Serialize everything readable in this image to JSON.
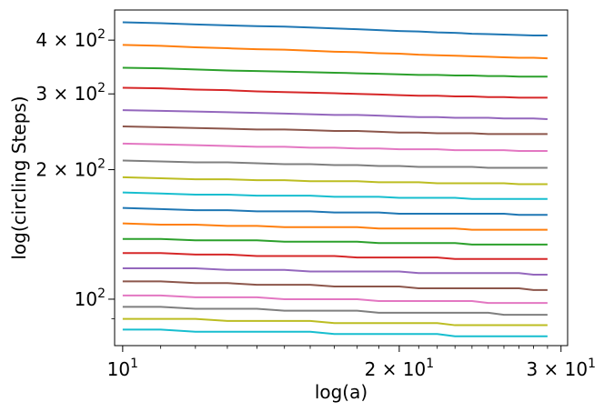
{
  "chart_data": {
    "type": "line",
    "title": "",
    "xlabel": "log(a)",
    "ylabel": "log(circling Steps)",
    "x_scale": "log",
    "y_scale": "log",
    "xlim": [
      9.8,
      30.5
    ],
    "ylim": [
      78,
      470
    ],
    "grid": false,
    "legend": "none",
    "x_ticks": [
      {
        "value": 10,
        "base": "10",
        "exp": "1",
        "coef": ""
      },
      {
        "value": 20,
        "base": "10",
        "exp": "1",
        "coef": "2"
      },
      {
        "value": 30,
        "base": "10",
        "exp": "1",
        "coef": "3"
      }
    ],
    "y_ticks": [
      {
        "value": 100,
        "base": "10",
        "exp": "2",
        "coef": ""
      },
      {
        "value": 200,
        "base": "10",
        "exp": "2",
        "coef": "2"
      },
      {
        "value": 300,
        "base": "10",
        "exp": "2",
        "coef": "3"
      },
      {
        "value": 400,
        "base": "10",
        "exp": "2",
        "coef": "4"
      }
    ],
    "x": [
      10,
      11,
      12,
      13,
      14,
      15,
      16,
      17,
      18,
      19,
      20,
      21,
      22,
      23,
      24,
      25,
      26,
      27,
      28,
      29
    ],
    "series": [
      {
        "color": "#1f77b4",
        "values": [
          440,
          438,
          435,
          433,
          431,
          430,
          428,
          426,
          424,
          422,
          420,
          419,
          417,
          416,
          414,
          413,
          412,
          411,
          410,
          410
        ]
      },
      {
        "color": "#ff7f0e",
        "values": [
          390,
          388,
          385,
          383,
          381,
          380,
          378,
          376,
          375,
          373,
          372,
          370,
          369,
          368,
          367,
          366,
          365,
          364,
          364,
          363
        ]
      },
      {
        "color": "#2ca02c",
        "values": [
          345,
          344,
          342,
          340,
          339,
          338,
          337,
          336,
          335,
          334,
          333,
          332,
          332,
          331,
          331,
          330,
          330,
          329,
          329,
          329
        ]
      },
      {
        "color": "#d62728",
        "values": [
          310,
          309,
          307,
          306,
          304,
          303,
          302,
          301,
          300,
          299,
          298,
          297,
          297,
          296,
          296,
          295,
          295,
          294,
          294,
          294
        ]
      },
      {
        "color": "#9467bd",
        "values": [
          275,
          274,
          273,
          272,
          271,
          270,
          269,
          268,
          268,
          267,
          266,
          265,
          265,
          264,
          264,
          264,
          263,
          263,
          263,
          262
        ]
      },
      {
        "color": "#8c564b",
        "values": [
          252,
          251,
          250,
          249,
          248,
          248,
          247,
          246,
          246,
          245,
          244,
          244,
          243,
          243,
          243,
          242,
          242,
          242,
          242,
          242
        ]
      },
      {
        "color": "#e377c2",
        "values": [
          230,
          229,
          228,
          227,
          226,
          226,
          225,
          225,
          224,
          224,
          223,
          223,
          223,
          222,
          222,
          222,
          222,
          221,
          221,
          221
        ]
      },
      {
        "color": "#7f7f7f",
        "values": [
          210,
          209,
          208,
          208,
          207,
          206,
          206,
          205,
          205,
          204,
          204,
          203,
          203,
          203,
          203,
          202,
          202,
          202,
          202,
          202
        ]
      },
      {
        "color": "#bcbd22",
        "values": [
          192,
          191,
          190,
          190,
          189,
          189,
          188,
          188,
          188,
          187,
          187,
          187,
          186,
          186,
          186,
          186,
          186,
          185,
          185,
          185
        ]
      },
      {
        "color": "#17becf",
        "values": [
          177,
          176,
          175,
          175,
          174,
          174,
          174,
          173,
          173,
          173,
          172,
          172,
          172,
          172,
          171,
          171,
          171,
          171,
          171,
          171
        ]
      },
      {
        "color": "#1f77b4",
        "values": [
          163,
          162,
          161,
          161,
          160,
          160,
          160,
          159,
          159,
          159,
          158,
          158,
          158,
          158,
          158,
          158,
          158,
          157,
          157,
          157
        ]
      },
      {
        "color": "#ff7f0e",
        "values": [
          150,
          149,
          149,
          148,
          148,
          147,
          147,
          147,
          147,
          146,
          146,
          146,
          146,
          146,
          145,
          145,
          145,
          145,
          145,
          145
        ]
      },
      {
        "color": "#2ca02c",
        "values": [
          138,
          138,
          137,
          137,
          137,
          136,
          136,
          136,
          136,
          135,
          135,
          135,
          135,
          135,
          134,
          134,
          134,
          134,
          134,
          134
        ]
      },
      {
        "color": "#d62728",
        "values": [
          128,
          128,
          127,
          127,
          126,
          126,
          126,
          126,
          125,
          125,
          125,
          125,
          125,
          124,
          124,
          124,
          124,
          124,
          124,
          124
        ]
      },
      {
        "color": "#9467bd",
        "values": [
          118,
          118,
          118,
          117,
          117,
          117,
          116,
          116,
          116,
          116,
          116,
          115,
          115,
          115,
          115,
          115,
          115,
          115,
          114,
          114
        ]
      },
      {
        "color": "#8c564b",
        "values": [
          110,
          110,
          109,
          109,
          108,
          108,
          108,
          107,
          107,
          107,
          107,
          106,
          106,
          106,
          106,
          106,
          106,
          106,
          105,
          105
        ]
      },
      {
        "color": "#e377c2",
        "values": [
          102,
          102,
          101,
          101,
          101,
          100,
          100,
          100,
          100,
          99,
          99,
          99,
          99,
          99,
          99,
          98,
          98,
          98,
          98,
          98
        ]
      },
      {
        "color": "#7f7f7f",
        "values": [
          96,
          96,
          95,
          95,
          95,
          94,
          94,
          94,
          94,
          93,
          93,
          93,
          93,
          93,
          93,
          93,
          92,
          92,
          92,
          92
        ]
      },
      {
        "color": "#bcbd22",
        "values": [
          90,
          90,
          90,
          89,
          89,
          89,
          89,
          88,
          88,
          88,
          88,
          88,
          88,
          87,
          87,
          87,
          87,
          87,
          87,
          87
        ]
      },
      {
        "color": "#17becf",
        "values": [
          85,
          85,
          84,
          84,
          84,
          84,
          84,
          83,
          83,
          83,
          83,
          83,
          83,
          82,
          82,
          82,
          82,
          82,
          82,
          82
        ]
      }
    ]
  }
}
